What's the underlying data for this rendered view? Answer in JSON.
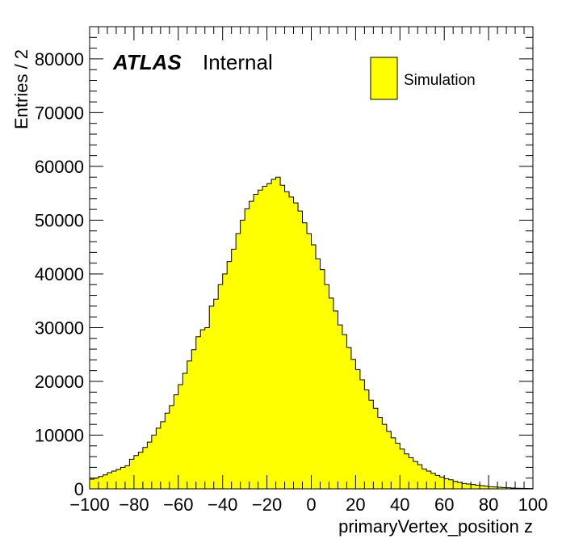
{
  "chart_data": {
    "type": "bar",
    "histogram": true,
    "xlabel": "primaryVertex_position z",
    "ylabel": "Entries / 2",
    "xlim": [
      -100,
      100
    ],
    "ylim": [
      0,
      86000
    ],
    "bin_width": 2,
    "x_ticks": [
      -100,
      -80,
      -60,
      -40,
      -20,
      0,
      20,
      40,
      60,
      80,
      100
    ],
    "y_ticks": [
      0,
      10000,
      20000,
      30000,
      40000,
      50000,
      60000,
      70000,
      80000
    ],
    "x_tick_labels": [
      "−100",
      "−80",
      "−60",
      "−40",
      "−20",
      "0",
      "20",
      "40",
      "60",
      "80",
      "100"
    ],
    "y_tick_labels": [
      "0",
      "10000",
      "20000",
      "30000",
      "40000",
      "50000",
      "60000",
      "70000",
      "80000"
    ],
    "legend": {
      "position": "top-right",
      "entries": [
        {
          "label": "Simulation",
          "color": "#ffff00"
        }
      ]
    },
    "annotation": {
      "atlas": "ATLAS",
      "status": "Internal"
    },
    "fill_color": "#ffff00",
    "line_color": "#000000",
    "series": [
      {
        "name": "Simulation",
        "values": [
          1800,
          2000,
          2300,
          2600,
          3000,
          3300,
          3600,
          4000,
          4300,
          5500,
          6200,
          6800,
          7700,
          8700,
          10000,
          11300,
          12500,
          14100,
          15500,
          17500,
          19400,
          21500,
          23800,
          25900,
          28300,
          29600,
          30000,
          34000,
          35300,
          38000,
          40000,
          42300,
          44600,
          47500,
          50000,
          52100,
          53500,
          54800,
          55600,
          56300,
          56800,
          57600,
          58000,
          56500,
          55300,
          54300,
          53200,
          51700,
          49500,
          47500,
          45400,
          42800,
          40800,
          38000,
          35500,
          33100,
          30500,
          28700,
          26300,
          24100,
          22200,
          20300,
          18400,
          16500,
          15000,
          13300,
          12000,
          10700,
          9500,
          8500,
          7400,
          6500,
          5800,
          5100,
          4500,
          3700,
          3300,
          2900,
          2500,
          2200,
          1900,
          1700,
          1400,
          1200,
          1000,
          900,
          800,
          700,
          600,
          500,
          400,
          350,
          300,
          250,
          200,
          150,
          120,
          100,
          80,
          60
        ]
      }
    ]
  }
}
